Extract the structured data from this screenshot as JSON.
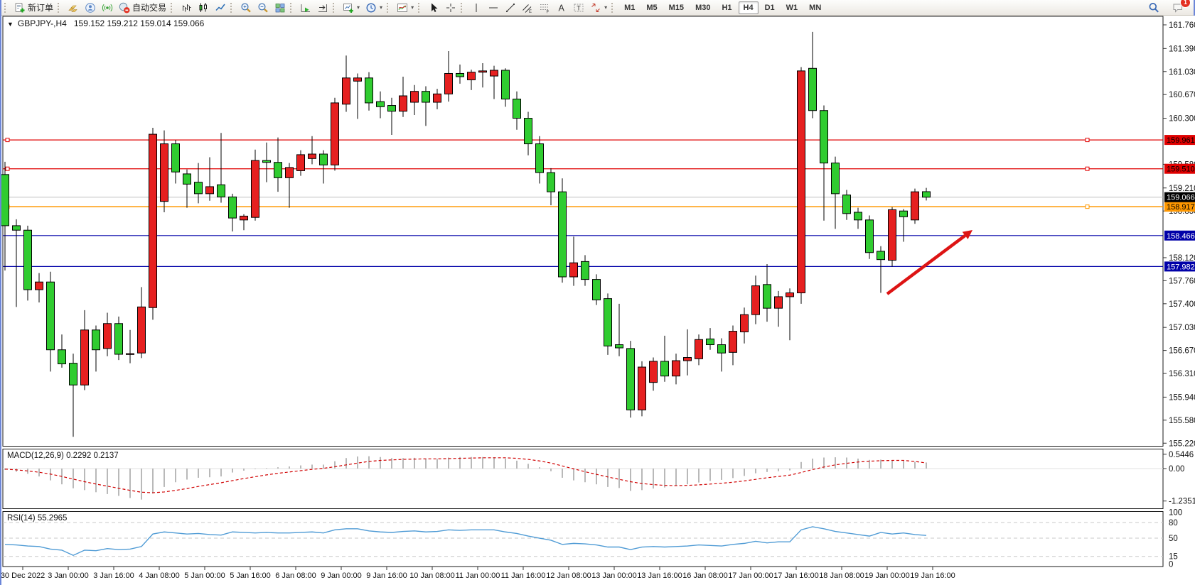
{
  "toolbar": {
    "new_order_label": "新订单",
    "autotrade_label": "自动交易",
    "icon_groups": [
      [
        {
          "icon": "new-order",
          "label_key": "new_order_label"
        }
      ],
      [
        {
          "icon": "gold-bars"
        },
        {
          "icon": "profile"
        },
        {
          "icon": "signal"
        },
        {
          "icon": "autotrade",
          "label_key": "autotrade_label"
        }
      ],
      [
        {
          "icon": "bar-chart"
        },
        {
          "icon": "candle-chart"
        },
        {
          "icon": "line-chart"
        }
      ],
      [
        {
          "icon": "zoom-in"
        },
        {
          "icon": "zoom-out"
        },
        {
          "icon": "tile-windows"
        }
      ],
      [
        {
          "icon": "auto-scroll"
        },
        {
          "icon": "chart-shift"
        }
      ],
      [
        {
          "icon": "new-chart",
          "dropdown": true
        },
        {
          "icon": "period",
          "dropdown": true
        }
      ],
      [
        {
          "icon": "indicators",
          "dropdown": true
        }
      ],
      [
        {
          "icon": "cursor"
        },
        {
          "icon": "crosshair"
        }
      ],
      [
        {
          "icon": "vertical-line"
        },
        {
          "icon": "horizontal-line"
        },
        {
          "icon": "trendline"
        },
        {
          "icon": "equidistant-channel"
        },
        {
          "icon": "fibonacci"
        },
        {
          "icon": "text"
        },
        {
          "icon": "text-label"
        },
        {
          "icon": "arrows",
          "dropdown": true
        }
      ]
    ],
    "timeframes": [
      "M1",
      "M5",
      "M15",
      "M30",
      "H1",
      "H4",
      "D1",
      "W1",
      "MN"
    ],
    "active_timeframe": "H4",
    "chat_badge": "1"
  },
  "chart_header": {
    "collapse_icon": "▼",
    "title": "GBPJPY-,H4",
    "ohlc": "159.152 159.212 159.014 159.066"
  },
  "price_axis": {
    "ticks": [
      "161.760",
      "161.390",
      "161.030",
      "160.670",
      "160.300",
      "159.580",
      "159.210",
      "158.850",
      "158.120",
      "157.760",
      "157.400",
      "157.030",
      "156.670",
      "156.310",
      "155.940",
      "155.580",
      "155.220"
    ],
    "max": 161.76,
    "min": 155.22
  },
  "hlines": [
    {
      "price": 159.961,
      "label": "159.961",
      "color": "#e00000",
      "text": "#000000",
      "marker": true
    },
    {
      "price": 159.51,
      "label": "159.510",
      "color": "#e00000",
      "text": "#000000",
      "marker": true
    },
    {
      "price": 158.917,
      "label": "158.917",
      "color": "#ff9800",
      "text": "#000000",
      "marker": true
    },
    {
      "price": 158.466,
      "label": "158.466",
      "color": "#0000a8",
      "text": "#ffffff",
      "marker": false
    },
    {
      "price": 157.982,
      "label": "157.982",
      "color": "#0000a8",
      "text": "#ffffff",
      "marker": false
    }
  ],
  "current_price": {
    "value": 159.066,
    "label": "159.066",
    "line_color": "#c0c0c0",
    "chip_bg": "#000000",
    "chip_text": "#ffffff"
  },
  "chart_data": {
    "type": "candlestick",
    "symbol": "GBPJPY-",
    "timeframe": "H4",
    "up_color": "#e62020",
    "down_color": "#30cc30",
    "x_start": 5,
    "x_step": 16,
    "candles": [
      [
        159.42,
        159.62,
        157.92,
        158.62
      ],
      [
        158.62,
        158.72,
        157.35,
        158.55
      ],
      [
        158.55,
        158.62,
        157.45,
        157.62
      ],
      [
        157.62,
        157.88,
        157.42,
        157.74
      ],
      [
        157.74,
        157.9,
        156.34,
        156.68
      ],
      [
        156.68,
        156.92,
        156.4,
        156.46
      ],
      [
        156.47,
        156.62,
        155.32,
        156.13
      ],
      [
        156.13,
        157.3,
        156.05,
        156.99
      ],
      [
        156.99,
        157.06,
        156.34,
        156.68
      ],
      [
        156.7,
        157.26,
        156.58,
        157.09
      ],
      [
        157.09,
        157.2,
        156.52,
        156.61
      ],
      [
        156.61,
        156.99,
        156.47,
        156.62
      ],
      [
        156.63,
        157.66,
        156.55,
        157.35
      ],
      [
        157.34,
        160.15,
        157.15,
        160.05
      ],
      [
        159.0,
        160.11,
        158.83,
        159.9
      ],
      [
        159.9,
        159.96,
        159.28,
        159.46
      ],
      [
        159.43,
        159.5,
        158.9,
        159.27
      ],
      [
        159.3,
        159.6,
        158.97,
        159.12
      ],
      [
        159.12,
        159.69,
        159.01,
        159.23
      ],
      [
        159.26,
        160.07,
        158.98,
        159.07
      ],
      [
        159.07,
        159.12,
        158.53,
        158.74
      ],
      [
        158.71,
        158.8,
        158.55,
        158.77
      ],
      [
        158.75,
        159.81,
        158.7,
        159.64
      ],
      [
        159.64,
        159.92,
        159.3,
        159.61
      ],
      [
        159.61,
        160.0,
        159.15,
        159.37
      ],
      [
        159.37,
        159.6,
        158.9,
        159.53
      ],
      [
        159.48,
        159.8,
        159.4,
        159.73
      ],
      [
        159.67,
        160.02,
        159.58,
        159.74
      ],
      [
        159.74,
        159.8,
        159.28,
        159.57
      ],
      [
        159.57,
        160.62,
        159.48,
        160.54
      ],
      [
        160.52,
        161.28,
        160.4,
        160.93
      ],
      [
        160.88,
        161.0,
        160.29,
        160.93
      ],
      [
        160.93,
        161.02,
        160.42,
        160.54
      ],
      [
        160.56,
        160.72,
        160.3,
        160.48
      ],
      [
        160.5,
        160.62,
        160.04,
        160.41
      ],
      [
        160.41,
        160.95,
        160.32,
        160.65
      ],
      [
        160.55,
        160.82,
        160.35,
        160.72
      ],
      [
        160.72,
        160.8,
        160.18,
        160.55
      ],
      [
        160.55,
        160.76,
        160.44,
        160.68
      ],
      [
        160.68,
        161.35,
        160.56,
        161.0
      ],
      [
        161.0,
        161.14,
        160.84,
        160.95
      ],
      [
        160.9,
        161.06,
        160.74,
        161.02
      ],
      [
        161.02,
        161.16,
        160.78,
        161.04
      ],
      [
        160.96,
        161.12,
        160.6,
        161.05
      ],
      [
        161.05,
        161.08,
        160.48,
        160.6
      ],
      [
        160.6,
        160.72,
        160.12,
        160.3
      ],
      [
        160.3,
        160.4,
        159.72,
        159.9
      ],
      [
        159.9,
        160.02,
        159.28,
        159.45
      ],
      [
        159.45,
        159.52,
        158.94,
        159.15
      ],
      [
        159.15,
        159.36,
        157.73,
        157.82
      ],
      [
        157.82,
        158.45,
        157.68,
        158.04
      ],
      [
        158.06,
        158.16,
        157.68,
        157.78
      ],
      [
        157.78,
        157.86,
        157.38,
        157.46
      ],
      [
        157.48,
        157.56,
        156.6,
        156.74
      ],
      [
        156.76,
        157.4,
        156.58,
        156.71
      ],
      [
        156.7,
        156.82,
        155.62,
        155.74
      ],
      [
        155.74,
        156.5,
        155.64,
        156.41
      ],
      [
        156.17,
        156.56,
        156.04,
        156.5
      ],
      [
        156.5,
        156.9,
        156.18,
        156.27
      ],
      [
        156.27,
        156.62,
        156.14,
        156.51
      ],
      [
        156.51,
        157.0,
        156.28,
        156.56
      ],
      [
        156.54,
        156.92,
        156.44,
        156.84
      ],
      [
        156.85,
        157.02,
        156.68,
        156.76
      ],
      [
        156.76,
        156.86,
        156.34,
        156.63
      ],
      [
        156.64,
        157.06,
        156.44,
        156.97
      ],
      [
        156.96,
        157.34,
        156.78,
        157.23
      ],
      [
        157.23,
        157.84,
        157.08,
        157.68
      ],
      [
        157.7,
        158.02,
        157.12,
        157.33
      ],
      [
        157.33,
        157.6,
        157.04,
        157.51
      ],
      [
        157.51,
        157.64,
        156.83,
        157.57
      ],
      [
        157.57,
        161.1,
        157.4,
        161.04
      ],
      [
        161.08,
        161.65,
        160.3,
        160.42
      ],
      [
        160.42,
        160.5,
        158.7,
        159.6
      ],
      [
        159.6,
        159.7,
        158.57,
        159.12
      ],
      [
        159.1,
        159.18,
        158.71,
        158.81
      ],
      [
        158.83,
        158.9,
        158.57,
        158.71
      ],
      [
        158.71,
        158.78,
        158.1,
        158.2
      ],
      [
        158.22,
        158.3,
        157.57,
        158.09
      ],
      [
        158.08,
        158.91,
        157.98,
        158.87
      ],
      [
        158.85,
        158.88,
        158.37,
        158.76
      ],
      [
        158.71,
        159.2,
        158.65,
        159.15
      ],
      [
        159.152,
        159.212,
        159.014,
        159.066
      ]
    ]
  },
  "indicators": {
    "macd": {
      "label": "MACD(12,26,9) 0.2292 0.2137",
      "params": "12,26,9",
      "value": 0.2292,
      "signal_value": 0.2137,
      "histogram_color": "#b9b9b9",
      "signal_color": "#d00000",
      "axis_labels": [
        {
          "text": "0.5446",
          "v": 0.5446
        },
        {
          "text": "0.00",
          "v": 0
        },
        {
          "text": "-1.2351",
          "v": -1.2351
        }
      ],
      "values": [
        -0.05,
        -0.12,
        -0.2,
        -0.3,
        -0.45,
        -0.6,
        -0.75,
        -0.82,
        -0.9,
        -0.97,
        -1.04,
        -1.12,
        -1.18,
        -0.95,
        -0.7,
        -0.52,
        -0.42,
        -0.35,
        -0.33,
        -0.3,
        -0.15,
        -0.08,
        -0.02,
        0.02,
        0.05,
        0.08,
        0.12,
        0.15,
        0.15,
        0.28,
        0.4,
        0.46,
        0.47,
        0.44,
        0.4,
        0.4,
        0.41,
        0.38,
        0.37,
        0.42,
        0.44,
        0.44,
        0.44,
        0.43,
        0.38,
        0.3,
        0.18,
        0.05,
        -0.1,
        -0.35,
        -0.45,
        -0.52,
        -0.6,
        -0.7,
        -0.74,
        -0.85,
        -0.82,
        -0.76,
        -0.72,
        -0.66,
        -0.6,
        -0.53,
        -0.47,
        -0.43,
        -0.36,
        -0.28,
        -0.18,
        -0.13,
        -0.1,
        -0.07,
        0.25,
        0.38,
        0.42,
        0.43,
        0.42,
        0.38,
        0.33,
        0.34,
        0.32,
        0.29,
        0.26,
        0.2292
      ],
      "signal": [
        -0.02,
        -0.05,
        -0.09,
        -0.14,
        -0.21,
        -0.3,
        -0.4,
        -0.5,
        -0.59,
        -0.67,
        -0.75,
        -0.83,
        -0.9,
        -0.92,
        -0.89,
        -0.83,
        -0.76,
        -0.68,
        -0.61,
        -0.54,
        -0.46,
        -0.38,
        -0.31,
        -0.24,
        -0.18,
        -0.13,
        -0.08,
        -0.03,
        0.01,
        0.07,
        0.14,
        0.21,
        0.27,
        0.31,
        0.33,
        0.35,
        0.36,
        0.37,
        0.37,
        0.38,
        0.39,
        0.4,
        0.41,
        0.41,
        0.41,
        0.39,
        0.35,
        0.29,
        0.21,
        0.1,
        -0.01,
        -0.12,
        -0.22,
        -0.32,
        -0.41,
        -0.5,
        -0.57,
        -0.61,
        -0.64,
        -0.65,
        -0.64,
        -0.62,
        -0.59,
        -0.56,
        -0.52,
        -0.47,
        -0.41,
        -0.35,
        -0.3,
        -0.25,
        -0.15,
        -0.04,
        0.06,
        0.14,
        0.2,
        0.25,
        0.28,
        0.3,
        0.31,
        0.31,
        0.27,
        0.2137
      ]
    },
    "rsi": {
      "label": "RSI(14) 55.2965",
      "period": "14",
      "value": 55.2965,
      "line_color": "#4f9bd5",
      "levels": [
        {
          "text": "100",
          "v": 100
        },
        {
          "text": "80",
          "v": 80,
          "dashed": true
        },
        {
          "text": "50",
          "v": 50,
          "dashed": true
        },
        {
          "text": "15",
          "v": 15,
          "dashed": true
        },
        {
          "text": "0",
          "v": 0
        }
      ],
      "series": [
        38,
        37,
        35,
        34,
        29,
        27,
        17,
        27,
        26,
        30,
        28,
        29,
        34,
        58,
        62,
        60,
        58,
        59,
        57,
        56,
        62,
        61,
        60,
        61,
        60,
        60,
        61,
        62,
        60,
        66,
        68,
        68,
        64,
        62,
        61,
        63,
        64,
        62,
        63,
        66,
        65,
        66,
        66,
        66,
        62,
        59,
        54,
        50,
        46,
        38,
        40,
        39,
        37,
        33,
        33,
        28,
        33,
        34,
        33,
        34,
        35,
        37,
        36,
        35,
        38,
        40,
        44,
        41,
        43,
        43,
        66,
        72,
        68,
        63,
        60,
        57,
        54,
        61,
        58,
        60,
        57,
        55.2965
      ]
    }
  },
  "time_axis": {
    "labels": [
      "30 Dec 2022",
      "3 Jan 00:00",
      "3 Jan 16:00",
      "4 Jan 08:00",
      "5 Jan 00:00",
      "5 Jan 16:00",
      "6 Jan 08:00",
      "9 Jan 00:00",
      "9 Jan 16:00",
      "10 Jan 08:00",
      "11 Jan 00:00",
      "11 Jan 16:00",
      "12 Jan 08:00",
      "13 Jan 00:00",
      "13 Jan 16:00",
      "16 Jan 08:00",
      "17 Jan 00:00",
      "17 Jan 16:00",
      "18 Jan 08:00",
      "19 Jan 00:00",
      "19 Jan 16:00"
    ]
  },
  "annotation_arrow": {
    "color": "#dd1414",
    "from": [
      1246,
      414
    ],
    "to": [
      1366,
      324
    ]
  }
}
